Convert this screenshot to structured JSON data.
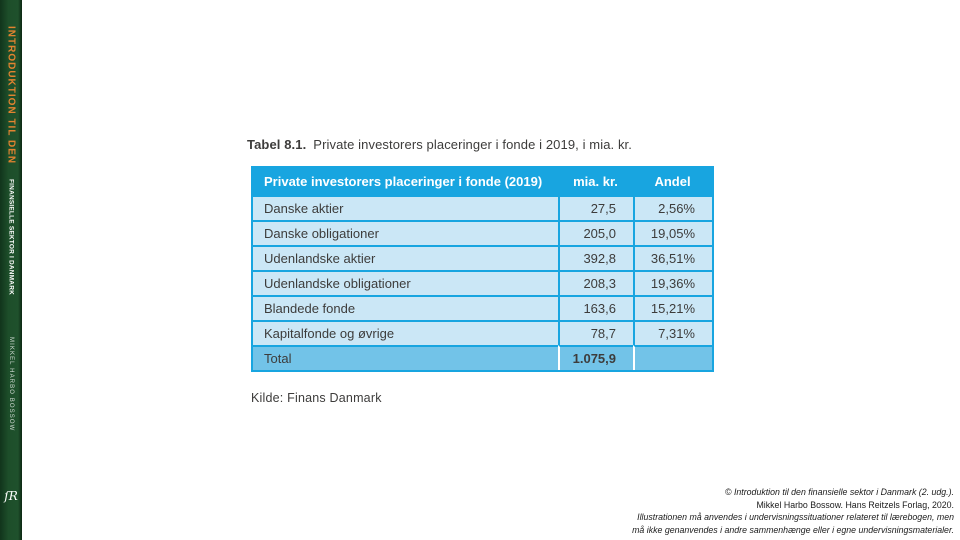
{
  "spine": {
    "title_accent": "INTRODUKTION TIL DEN",
    "title_rest": "FINANSIELLE SEKTOR I DANMARK",
    "author": "MIKKEL HARBO BOSSOW",
    "logo_glyph": "ſR"
  },
  "caption": {
    "label": "Tabel 8.1.",
    "text": "Private investorers placeringer i fonde i 2019, i mia. kr."
  },
  "table": {
    "headers": {
      "name": "Private investorers placeringer i fonde (2019)",
      "amount": "mia. kr.",
      "share": "Andel"
    },
    "rows": [
      {
        "label": "Danske aktier",
        "amount": "27,5",
        "share": "2,56%"
      },
      {
        "label": "Danske obligationer",
        "amount": "205,0",
        "share": "19,05%"
      },
      {
        "label": "Udenlandske aktier",
        "amount": "392,8",
        "share": "36,51%"
      },
      {
        "label": "Udenlandske obligationer",
        "amount": "208,3",
        "share": "19,36%"
      },
      {
        "label": "Blandede fonde",
        "amount": "163,6",
        "share": "15,21%"
      },
      {
        "label": "Kapitalfonde og øvrige",
        "amount": "78,7",
        "share": "7,31%"
      }
    ],
    "total": {
      "label": "Total",
      "amount": "1.075,9",
      "share": ""
    }
  },
  "source_note": "Kilde: Finans Danmark",
  "footer": {
    "line1": "© Introduktion til den finansielle sektor i Danmark (2. udg.).",
    "line2": "Mikkel Harbo Bossow. Hans Reitzels Forlag, 2020.",
    "line3": "Illustrationen må anvendes i undervisningssituationer relateret til lærebogen, men",
    "line4": "må ikke genanvendes i andre sammenhænge eller i egne undervisningsmaterialer."
  },
  "colors": {
    "table_header_bg": "#18a5e0",
    "table_row_bg": "#cbe7f6",
    "table_total_bg": "#72c3e8",
    "table_border": "#18a5e0",
    "spine_green": "#1d4e2a",
    "spine_accent_orange": "#e28330",
    "body_text": "#3d3c3b"
  },
  "chart_data": {
    "type": "table",
    "title": "Tabel 8.1. Private investorers placeringer i fonde i 2019, i mia. kr.",
    "columns": [
      "Private investorers placeringer i fonde (2019)",
      "mia. kr.",
      "Andel"
    ],
    "rows": [
      [
        "Danske aktier",
        27.5,
        "2,56%"
      ],
      [
        "Danske obligationer",
        205.0,
        "19,05%"
      ],
      [
        "Udenlandske aktier",
        392.8,
        "36,51%"
      ],
      [
        "Udenlandske obligationer",
        208.3,
        "19,36%"
      ],
      [
        "Blandede fonde",
        163.6,
        "15,21%"
      ],
      [
        "Kapitalfonde og øvrige",
        78.7,
        "7,31%"
      ],
      [
        "Total",
        1075.9,
        ""
      ]
    ],
    "source": "Kilde: Finans Danmark"
  }
}
